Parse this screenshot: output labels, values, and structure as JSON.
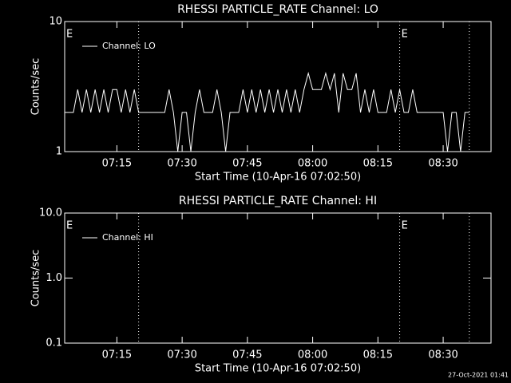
{
  "chart_data": [
    {
      "type": "line",
      "title": "RHESSI PARTICLE_RATE Channel: LO",
      "xlabel": "Start Time (10-Apr-16 07:02:50)",
      "ylabel": "Counts/sec",
      "log_y": true,
      "color": "#ffffff",
      "legend": "upper left",
      "xlim": [
        "07:03",
        "08:41"
      ],
      "xticks": [
        "07:15",
        "07:30",
        "07:45",
        "08:00",
        "08:15",
        "08:30"
      ],
      "ylim": [
        1,
        10
      ],
      "yticks": [
        1,
        10
      ],
      "vlines": [
        "07:20",
        "08:20",
        "08:36"
      ],
      "annotations": [
        {
          "x": "07:03",
          "text": "E"
        },
        {
          "x": "08:20",
          "text": "E"
        }
      ],
      "x": [
        "07:03",
        "07:04",
        "07:05",
        "07:06",
        "07:07",
        "07:08",
        "07:09",
        "07:10",
        "07:11",
        "07:12",
        "07:13",
        "07:14",
        "07:15",
        "07:16",
        "07:17",
        "07:18",
        "07:19",
        "07:20",
        "07:21",
        "07:22",
        "07:23",
        "07:24",
        "07:25",
        "07:26",
        "07:27",
        "07:28",
        "07:29",
        "07:30",
        "07:31",
        "07:32",
        "07:33",
        "07:34",
        "07:35",
        "07:36",
        "07:37",
        "07:38",
        "07:39",
        "07:40",
        "07:41",
        "07:42",
        "07:43",
        "07:44",
        "07:45",
        "07:46",
        "07:47",
        "07:48",
        "07:49",
        "07:50",
        "07:51",
        "07:52",
        "07:53",
        "07:54",
        "07:55",
        "07:56",
        "07:57",
        "07:58",
        "07:59",
        "08:00",
        "08:01",
        "08:02",
        "08:03",
        "08:04",
        "08:05",
        "08:06",
        "08:07",
        "08:08",
        "08:09",
        "08:10",
        "08:11",
        "08:12",
        "08:13",
        "08:14",
        "08:15",
        "08:16",
        "08:17",
        "08:18",
        "08:19",
        "08:20",
        "08:21",
        "08:22",
        "08:23",
        "08:24",
        "08:25",
        "08:26",
        "08:27",
        "08:28",
        "08:29",
        "08:30",
        "08:31",
        "08:32",
        "08:33",
        "08:34",
        "08:35",
        "08:36"
      ],
      "series": [
        {
          "name": "Channel: LO",
          "color": "#ffffff",
          "values": [
            2,
            2,
            2,
            3,
            2,
            3,
            2,
            3,
            2,
            3,
            2,
            3,
            3,
            2,
            3,
            2,
            3,
            2,
            2,
            2,
            2,
            2,
            2,
            2,
            3,
            2,
            1,
            2,
            2,
            1,
            2,
            3,
            2,
            2,
            2,
            3,
            2,
            1,
            2,
            2,
            2,
            3,
            2,
            3,
            2,
            3,
            2,
            3,
            2,
            3,
            2,
            3,
            2,
            3,
            2,
            3,
            4,
            3,
            3,
            3,
            4,
            3,
            4,
            2,
            4,
            3,
            3,
            4,
            2,
            3,
            2,
            3,
            2,
            2,
            2,
            3,
            2,
            3,
            2,
            2,
            3,
            2,
            2,
            2,
            2,
            2,
            2,
            2,
            1,
            2,
            2,
            1,
            2,
            2
          ]
        }
      ]
    },
    {
      "type": "line",
      "title": "RHESSI PARTICLE_RATE Channel: HI",
      "xlabel": "Start Time (10-Apr-16 07:02:50)",
      "ylabel": "Counts/sec",
      "log_y": true,
      "color": "#ffffff",
      "legend": "upper left",
      "xlim": [
        "07:03",
        "08:41"
      ],
      "xticks": [
        "07:15",
        "07:30",
        "07:45",
        "08:00",
        "08:15",
        "08:30"
      ],
      "ylim": [
        0.1,
        10
      ],
      "yticks": [
        0.1,
        {
          "value": 1,
          "label": "1.0"
        },
        {
          "value": 10,
          "label": "10.0"
        }
      ],
      "vlines": [
        "07:20",
        "08:20",
        "08:36"
      ],
      "annotations": [
        {
          "x": "07:03",
          "text": "E"
        },
        {
          "x": "08:20",
          "text": "E"
        }
      ],
      "x": [],
      "series": [
        {
          "name": "Channel: HI",
          "color": "#ffffff",
          "values": []
        }
      ]
    }
  ],
  "footer": "27-Oct-2021 01:41"
}
